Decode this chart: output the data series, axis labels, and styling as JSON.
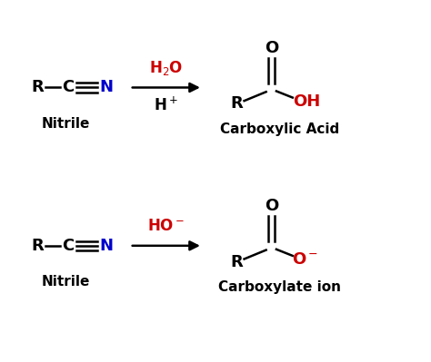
{
  "bg_color": "#ffffff",
  "fig_width": 4.74,
  "fig_height": 3.99,
  "dpi": 100,
  "colors": {
    "black": "#000000",
    "blue": "#0000cc",
    "red": "#cc0000"
  },
  "reaction1": {
    "nitrile_label": "Nitrile",
    "reagent_top": "H$_2$O",
    "reagent_bot": "H$^+$",
    "product_label": "Carboxylic Acid"
  },
  "reaction2": {
    "nitrile_label": "Nitrile",
    "reagent": "HO$^-$",
    "product_label": "Carboxylate ion"
  }
}
